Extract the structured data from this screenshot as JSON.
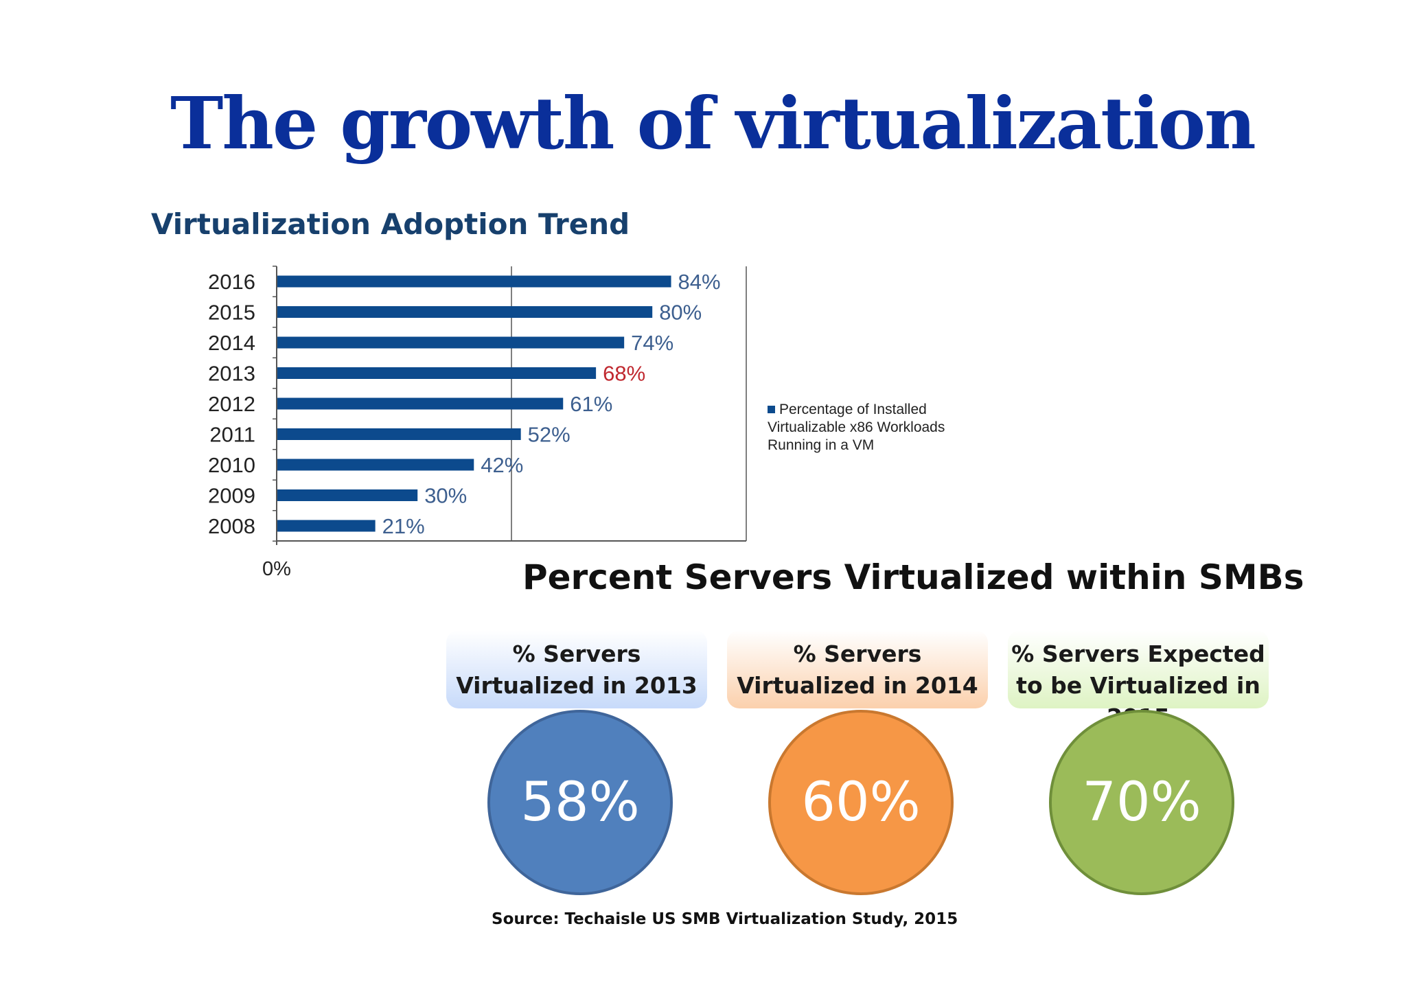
{
  "slide": {
    "title": "The growth of virtualization",
    "source": "Source: Techaisle US SMB Virtualization Study, 2015"
  },
  "chart_data": [
    {
      "type": "bar",
      "orientation": "horizontal",
      "title": "Virtualization Adoption Trend",
      "categories": [
        "2016",
        "2015",
        "2014",
        "2013",
        "2012",
        "2011",
        "2010",
        "2009",
        "2008"
      ],
      "series": [
        {
          "name": "Percentage of Installed Virtualizable x86 Workloads Running in a VM",
          "values": [
            84,
            80,
            74,
            68,
            61,
            52,
            42,
            30,
            21
          ],
          "labels": [
            "84%",
            "80%",
            "74%",
            "68%",
            "61%",
            "52%",
            "42%",
            "30%",
            "21%"
          ]
        }
      ],
      "highlight_category": "2013",
      "xlim": [
        0,
        100
      ],
      "x_tick_labels": [
        "0%"
      ],
      "grid": true,
      "legend_position": "right",
      "colors": {
        "bar": "#0c4a8d",
        "label": "#3d5f8f",
        "highlight_label": "#c0282f",
        "axis": "#555555"
      }
    },
    {
      "type": "table",
      "title": "Percent Servers Virtualized within SMBs",
      "items": [
        {
          "label": "% Servers Virtualized in 2013",
          "value": 58,
          "value_label": "58%",
          "header_color": "#c7dafa",
          "circle_color": "#5080bd",
          "border_color": "#3f659a"
        },
        {
          "label": "% Servers Virtualized in 2014",
          "value": 60,
          "value_label": "60%",
          "header_color": "#fbd0ac",
          "circle_color": "#f69746",
          "border_color": "#c9782f"
        },
        {
          "label": "% Servers Expected to be Virtualized in 2015",
          "value": 70,
          "value_label": "70%",
          "header_color": "#def3c3",
          "circle_color": "#9bbb59",
          "border_color": "#6f8f3a"
        }
      ]
    }
  ]
}
